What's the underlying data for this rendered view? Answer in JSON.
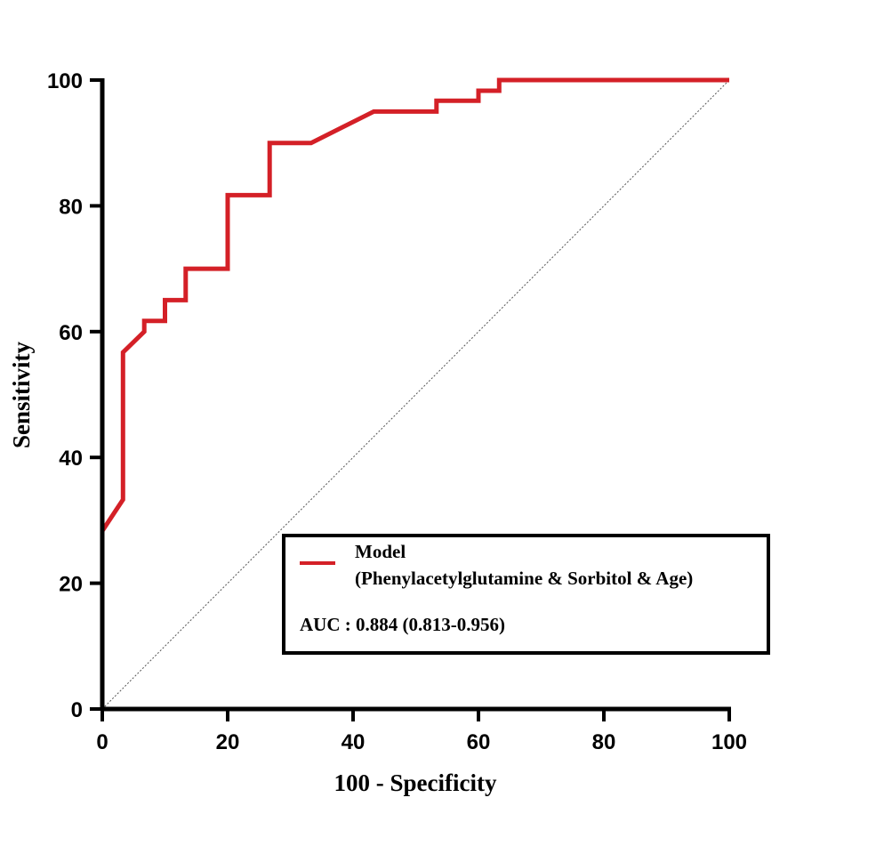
{
  "chart_data": {
    "type": "line",
    "xlabel": "100 - Specificity",
    "ylabel": "Sensitivity",
    "xlim": [
      0,
      100
    ],
    "ylim": [
      0,
      100
    ],
    "x_ticks": [
      "0",
      "20",
      "40",
      "60",
      "80",
      "100"
    ],
    "y_ticks": [
      "0",
      "20",
      "40",
      "60",
      "80",
      "100"
    ],
    "grid": false,
    "legend_position": "bottom-right",
    "series": [
      {
        "name": "Model",
        "name_line2": "(Phenylacetylglutamine & Sorbitol & Age)",
        "color": "#d42027",
        "style": "step",
        "points": [
          [
            0,
            0
          ],
          [
            0,
            28.3
          ],
          [
            3.3,
            33.3
          ],
          [
            3.3,
            56.7
          ],
          [
            6.7,
            60
          ],
          [
            6.7,
            61.7
          ],
          [
            10,
            61.7
          ],
          [
            10,
            65
          ],
          [
            13.3,
            65
          ],
          [
            13.3,
            70
          ],
          [
            20,
            70
          ],
          [
            20,
            81.7
          ],
          [
            26.7,
            81.7
          ],
          [
            26.7,
            90
          ],
          [
            33.3,
            90
          ],
          [
            43.3,
            95
          ],
          [
            53.3,
            95
          ],
          [
            53.3,
            96.7
          ],
          [
            60,
            96.7
          ],
          [
            60,
            98.3
          ],
          [
            63.3,
            98.3
          ],
          [
            63.3,
            100
          ],
          [
            100,
            100
          ]
        ]
      },
      {
        "name": "",
        "color": "#555555",
        "style": "reference-diagonal",
        "points": [
          [
            0,
            0
          ],
          [
            100,
            100
          ]
        ]
      }
    ],
    "annotation": "AUC : 0.884 (0.813-0.956)"
  }
}
